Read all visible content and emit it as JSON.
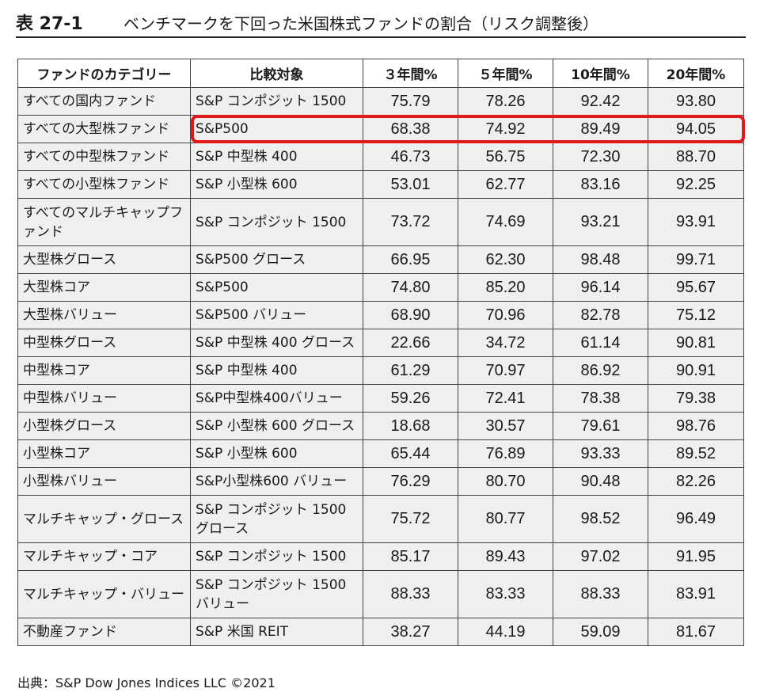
{
  "title": {
    "label": "表 27-1",
    "text": "ベンチマークを下回った米国株式ファンドの割合（リスク調整後）"
  },
  "table": {
    "headers": [
      "ファンドのカテゴリー",
      "比較対象",
      "３年間%",
      "５年間%",
      "10年間%",
      "20年間%"
    ],
    "rows": [
      {
        "category": "すべての国内ファンド",
        "benchmark": "S&P コンポジット 1500",
        "y3": "75.79",
        "y5": "78.26",
        "y10": "92.42",
        "y20": "93.80"
      },
      {
        "category": "すべての大型株ファンド",
        "benchmark": "S&P500",
        "y3": "68.38",
        "y5": "74.92",
        "y10": "89.49",
        "y20": "94.05"
      },
      {
        "category": "すべての中型株ファンド",
        "benchmark": "S&P 中型株 400",
        "y3": "46.73",
        "y5": "56.75",
        "y10": "72.30",
        "y20": "88.70"
      },
      {
        "category": "すべての小型株ファンド",
        "benchmark": "S&P 小型株 600",
        "y3": "53.01",
        "y5": "62.77",
        "y10": "83.16",
        "y20": "92.25"
      },
      {
        "category": "すべてのマルチキャップファンド",
        "benchmark": "S&P コンポジット 1500",
        "y3": "73.72",
        "y5": "74.69",
        "y10": "93.21",
        "y20": "93.91"
      },
      {
        "category": "大型株グロース",
        "benchmark": "S&P500 グロース",
        "y3": "66.95",
        "y5": "62.30",
        "y10": "98.48",
        "y20": "99.71"
      },
      {
        "category": "大型株コア",
        "benchmark": "S&P500",
        "y3": "74.80",
        "y5": "85.20",
        "y10": "96.14",
        "y20": "95.67"
      },
      {
        "category": "大型株バリュー",
        "benchmark": "S&P500 バリュー",
        "y3": "68.90",
        "y5": "70.96",
        "y10": "82.78",
        "y20": "75.12"
      },
      {
        "category": "中型株グロース",
        "benchmark": "S&P 中型株 400 グロース",
        "y3": "22.66",
        "y5": "34.72",
        "y10": "61.14",
        "y20": "90.81"
      },
      {
        "category": "中型株コア",
        "benchmark": "S&P 中型株 400",
        "y3": "61.29",
        "y5": "70.97",
        "y10": "86.92",
        "y20": "90.91"
      },
      {
        "category": "中型株バリュー",
        "benchmark": "S&P中型株400バリュー",
        "y3": "59.26",
        "y5": "72.41",
        "y10": "78.38",
        "y20": "79.38"
      },
      {
        "category": "小型株グロース",
        "benchmark": "S&P 小型株 600 グロース",
        "y3": "18.68",
        "y5": "30.57",
        "y10": "79.61",
        "y20": "98.76"
      },
      {
        "category": "小型株コア",
        "benchmark": "S&P 小型株 600",
        "y3": "65.44",
        "y5": "76.89",
        "y10": "93.33",
        "y20": "89.52"
      },
      {
        "category": "小型株バリュー",
        "benchmark": "S&P小型株600 バリュー",
        "y3": "76.29",
        "y5": "80.70",
        "y10": "90.48",
        "y20": "82.26"
      },
      {
        "category": "マルチキャップ・グロース",
        "benchmark": "S&P コンポジット 1500 グロース",
        "y3": "75.72",
        "y5": "80.77",
        "y10": "98.52",
        "y20": "96.49"
      },
      {
        "category": "マルチキャップ・コア",
        "benchmark": "S&P コンポジット 1500",
        "y3": "85.17",
        "y5": "89.43",
        "y10": "97.02",
        "y20": "91.95"
      },
      {
        "category": "マルチキャップ・バリュー",
        "benchmark": "S&P コンポジット 1500 バリュー",
        "y3": "88.33",
        "y5": "83.33",
        "y10": "88.33",
        "y20": "83.91"
      },
      {
        "category": "不動産ファンド",
        "benchmark": "S&P 米国 REIT",
        "y3": "38.27",
        "y5": "44.19",
        "y10": "59.09",
        "y20": "81.67"
      }
    ],
    "highlighted_row": 1,
    "highlight_color": "#e0191b",
    "cell_background": "#efefef"
  },
  "source": "出典：S&P Dow Jones Indices LLC ©2021"
}
